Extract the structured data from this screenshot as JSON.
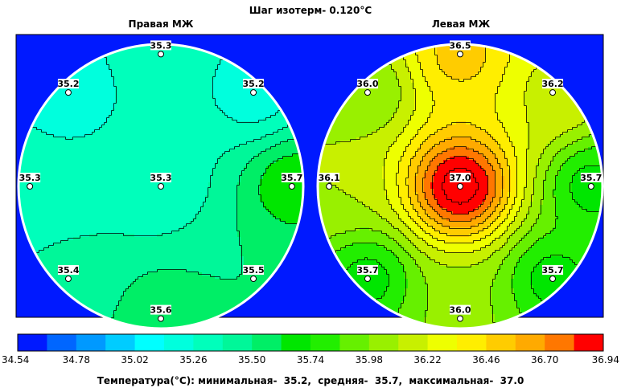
{
  "header": {
    "title": "Шаг изотерм- 0.120°C"
  },
  "maps": [
    {
      "title": "Правая МЖ",
      "points": [
        {
          "id": "top",
          "label": "35.3",
          "value": 35.3
        },
        {
          "id": "upper-left",
          "label": "35.2",
          "value": 35.2
        },
        {
          "id": "upper-right",
          "label": "35.2",
          "value": 35.2
        },
        {
          "id": "left",
          "label": "35.3",
          "value": 35.3
        },
        {
          "id": "center",
          "label": "35.3",
          "value": 35.3
        },
        {
          "id": "right",
          "label": "35.7",
          "value": 35.7
        },
        {
          "id": "lower-left",
          "label": "35.4",
          "value": 35.4
        },
        {
          "id": "lower-right",
          "label": "35.5",
          "value": 35.5
        },
        {
          "id": "bottom",
          "label": "35.6",
          "value": 35.6
        }
      ]
    },
    {
      "title": "Левая МЖ",
      "points": [
        {
          "id": "top",
          "label": "36.5",
          "value": 36.5
        },
        {
          "id": "upper-left",
          "label": "36.0",
          "value": 36.0
        },
        {
          "id": "upper-right",
          "label": "36.2",
          "value": 36.2
        },
        {
          "id": "left",
          "label": "36.1",
          "value": 36.1
        },
        {
          "id": "center",
          "label": "37.0",
          "value": 37.0
        },
        {
          "id": "right",
          "label": "35.7",
          "value": 35.7
        },
        {
          "id": "lower-left",
          "label": "35.7",
          "value": 35.7
        },
        {
          "id": "lower-right",
          "label": "35.7",
          "value": 35.7
        },
        {
          "id": "bottom",
          "label": "36.0",
          "value": 36.0
        }
      ]
    }
  ],
  "chart_data": {
    "type": "heatmap",
    "isotherm_step": 0.12,
    "unit": "°C",
    "colorbar": {
      "min": 34.54,
      "max": 36.94,
      "step": 0.12,
      "tick_labels": [
        "34.54",
        "34.78",
        "35.02",
        "35.26",
        "35.50",
        "35.74",
        "35.98",
        "36.22",
        "36.46",
        "36.70",
        "36.94"
      ],
      "colors": [
        "#0019ff",
        "#0066ff",
        "#0099ff",
        "#00ccff",
        "#00ffff",
        "#00ffdd",
        "#00ffbb",
        "#00f799",
        "#00ee66",
        "#00e600",
        "#22ee00",
        "#66f000",
        "#99f000",
        "#c8f000",
        "#eeff00",
        "#ffee00",
        "#ffcc00",
        "#ffaa00",
        "#ff7700",
        "#ff0000"
      ]
    },
    "stats": {
      "min": 35.2,
      "mean": 35.7,
      "max": 37.0
    }
  },
  "footer": {
    "text": "Температура(°C): минимальная-  35.2,  средняя-  35.7,  максимальная-  37.0"
  },
  "colors": {
    "background": "#0019ff",
    "border": "#ffffff",
    "isotherm": "#000000"
  }
}
